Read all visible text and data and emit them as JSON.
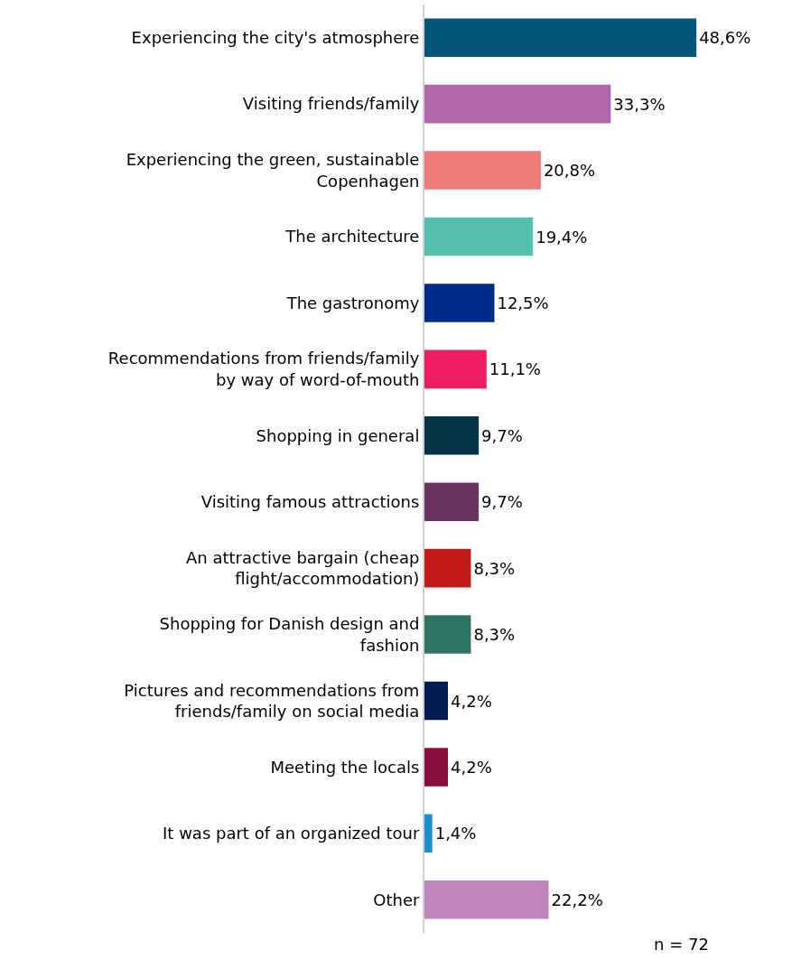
{
  "chart_data": {
    "type": "bar",
    "orientation": "horizontal",
    "categories": [
      "Experiencing the city's atmosphere",
      "Visiting friends/family",
      "Experiencing the green, sustainable Copenhagen",
      "The architecture",
      "The gastronomy",
      "Recommendations from friends/family by way of word-of-mouth",
      "Shopping in general",
      "Visiting famous attractions",
      "An attractive bargain (cheap flight/accommodation)",
      "Shopping for Danish design and fashion",
      "Pictures and recommendations from friends/family on social media",
      "Meeting the locals",
      "It was part of an organized tour",
      "Other"
    ],
    "values": [
      48.6,
      33.3,
      20.8,
      19.4,
      12.5,
      11.1,
      9.7,
      9.7,
      8.3,
      8.3,
      4.2,
      4.2,
      1.4,
      22.2
    ],
    "value_labels": [
      "48,6%",
      "33,3%",
      "20,8%",
      "19,4%",
      "12,5%",
      "11,1%",
      "9,7%",
      "9,7%",
      "8,3%",
      "8,3%",
      "4,2%",
      "4,2%",
      "1,4%",
      "22,2%"
    ],
    "colors": [
      "#03567a",
      "#b066aa",
      "#f07a7a",
      "#52c0ad",
      "#002a8a",
      "#ed1c65",
      "#04334a",
      "#6a3461",
      "#c2181a",
      "#2e7566",
      "#001b50",
      "#8b0d3b",
      "#1a8fd0",
      "#c083bb"
    ],
    "annotations": [
      "n = 72"
    ]
  }
}
